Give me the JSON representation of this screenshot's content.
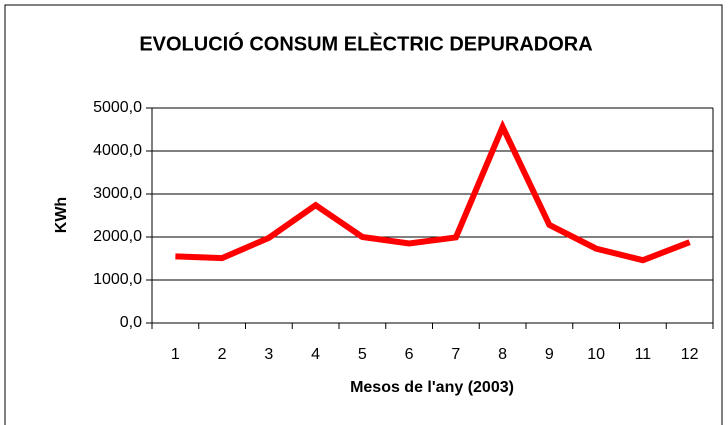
{
  "chart_data": {
    "type": "line",
    "title": "EVOLUCIÓ CONSUM ELÈCTRIC DEPURADORA",
    "x_label": "Mesos de l'any (2003)",
    "y_label": "KWh",
    "categories": [
      "1",
      "2",
      "3",
      "4",
      "5",
      "6",
      "7",
      "8",
      "9",
      "10",
      "11",
      "12"
    ],
    "series": [
      {
        "name": "KWh",
        "color": "#ff0000",
        "values": [
          1550,
          1510,
          1980,
          2740,
          2000,
          1850,
          1990,
          4560,
          2280,
          1730,
          1460,
          1880
        ]
      }
    ],
    "ylim": [
      0,
      5000
    ],
    "yticks": [
      {
        "value": 0,
        "label": "0,0"
      },
      {
        "value": 1000,
        "label": "1000,0"
      },
      {
        "value": 2000,
        "label": "2000,0"
      },
      {
        "value": 3000,
        "label": "3000,0"
      },
      {
        "value": 4000,
        "label": "4000,0"
      },
      {
        "value": 5000,
        "label": "5000,0"
      }
    ],
    "grid": true
  }
}
